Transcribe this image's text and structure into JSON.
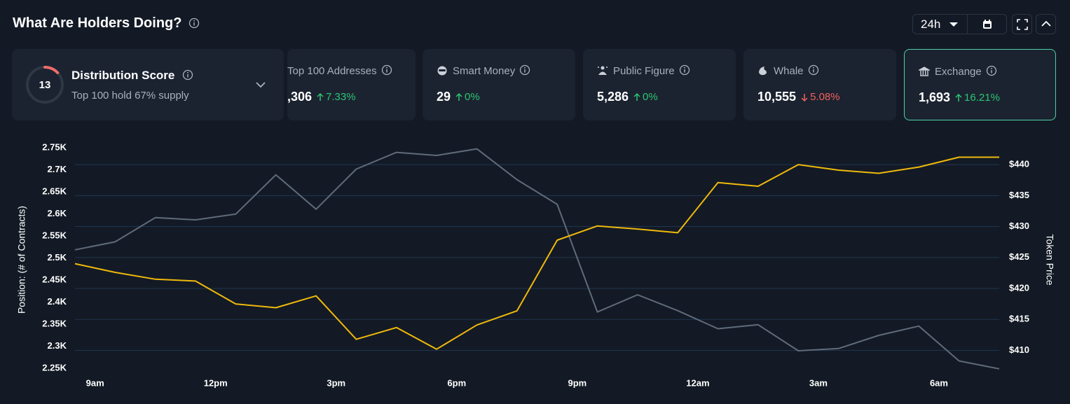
{
  "header": {
    "title": "What Are Holders Doing?",
    "timeframe": "24h"
  },
  "score": {
    "value": 13,
    "title": "Distribution Score",
    "subtitle": "Top 100 hold 67% supply"
  },
  "cards": [
    {
      "label": "Top 100 Addresses",
      "value": ",306",
      "change": "7.33%",
      "direction": "up"
    },
    {
      "label": "Smart Money",
      "value": "29",
      "change": "0%",
      "direction": "up"
    },
    {
      "label": "Public Figure",
      "value": "5,286",
      "change": "0%",
      "direction": "up"
    },
    {
      "label": "Whale",
      "value": "10,555",
      "change": "5.08%",
      "direction": "down"
    },
    {
      "label": "Exchange",
      "value": "1,693",
      "change": "16.21%",
      "direction": "up"
    }
  ],
  "chart_data": {
    "type": "line",
    "ylabel": "Position: (# of Contracts)",
    "y2label": "Token Price",
    "x": [
      8.5,
      9.5,
      10.5,
      11.5,
      12.5,
      13.5,
      14.5,
      15.5,
      16.5,
      17.5,
      18.5,
      19.5,
      20.5,
      21.5,
      22.5,
      23.5,
      24.5,
      25.5,
      26.5,
      27.5,
      28.5,
      29.5,
      30.5,
      31.5
    ],
    "xlim": [
      8.5,
      31.5
    ],
    "xticks": [
      {
        "value": 9,
        "label": "9am"
      },
      {
        "value": 12,
        "label": "12pm"
      },
      {
        "value": 15,
        "label": "3pm"
      },
      {
        "value": 18,
        "label": "6pm"
      },
      {
        "value": 21,
        "label": "9pm"
      },
      {
        "value": 24,
        "label": "12am"
      },
      {
        "value": 27,
        "label": "3am"
      },
      {
        "value": 30,
        "label": "6am"
      }
    ],
    "ylim": [
      2236,
      2760
    ],
    "yticks": [
      {
        "value": 2250,
        "label": "2.25K"
      },
      {
        "value": 2300,
        "label": "2.3K"
      },
      {
        "value": 2350,
        "label": "2.35K"
      },
      {
        "value": 2400,
        "label": "2.4K"
      },
      {
        "value": 2450,
        "label": "2.45K"
      },
      {
        "value": 2500,
        "label": "2.5K"
      },
      {
        "value": 2550,
        "label": "2.55K"
      },
      {
        "value": 2600,
        "label": "2.6K"
      },
      {
        "value": 2650,
        "label": "2.65K"
      },
      {
        "value": 2700,
        "label": "2.7K"
      },
      {
        "value": 2750,
        "label": "2.75K"
      }
    ],
    "y2lim": [
      406.1,
      443.4
    ],
    "y2ticks": [
      {
        "value": 410,
        "label": "$410"
      },
      {
        "value": 415,
        "label": "$415"
      },
      {
        "value": 420,
        "label": "$420"
      },
      {
        "value": 425,
        "label": "$425"
      },
      {
        "value": 430,
        "label": "$430"
      },
      {
        "value": 435,
        "label": "$435"
      },
      {
        "value": 440,
        "label": "$440"
      }
    ],
    "grid": "y2",
    "series": [
      {
        "color": "#5f6b7a",
        "values": [
          2519,
          2537,
          2592,
          2587,
          2600,
          2689,
          2611,
          2702,
          2740,
          2733,
          2748,
          2678,
          2622,
          2378,
          2417,
          2381,
          2340,
          2349,
          2290,
          2295,
          2325,
          2346,
          2267,
          2249
        ]
      },
      {
        "color": "#f0b90b",
        "axis": "y2",
        "values": [
          424.0,
          422.6,
          421.5,
          421.2,
          417.5,
          416.9,
          418.8,
          411.8,
          413.7,
          410.2,
          414.1,
          416.4,
          427.8,
          430.1,
          429.6,
          429.0,
          437.1,
          436.5,
          440.0,
          439.1,
          438.6,
          439.6,
          441.2,
          441.2
        ]
      }
    ]
  }
}
